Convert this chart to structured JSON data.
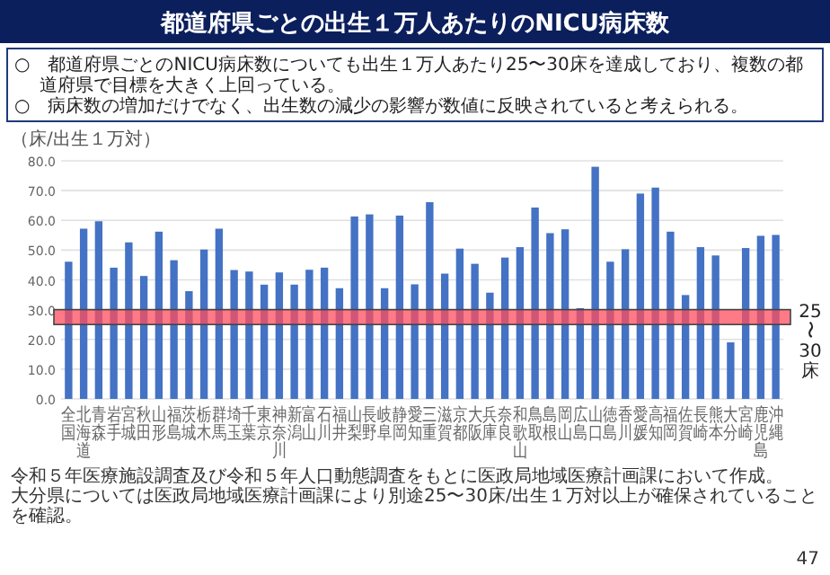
{
  "chart_data": {
    "type": "bar",
    "title": "都道府県ごとの出生１万人あたりのNICU病床数",
    "ylabel": "（床/出生１万対）",
    "annotations": [
      "○　都道府県ごとのNICU病床数についても出生１万人あたり25〜30床を達成しており、複数の都道府県で目標を大きく上回っている。",
      "○　病床数の増加だけでなく、出生数の減少の影響が数値に反映されていると考えられる。",
      "令和５年医療施設調査及び令和５年人口動態調査をもとに医政局地域医療計画課において作成。",
      "大分県については医政局地域医療計画課により別途25〜30床/出生１万対以上が確保されていることを確認。",
      "47"
    ],
    "categories": [
      "全国",
      "北海道",
      "青森",
      "岩手",
      "宮城",
      "秋田",
      "山形",
      "福島",
      "茨城",
      "栃木",
      "群馬",
      "埼玉",
      "千葉",
      "東京",
      "神奈川",
      "新潟",
      "富山",
      "石川",
      "福井",
      "山梨",
      "長野",
      "岐阜",
      "静岡",
      "愛知",
      "三重",
      "滋賀",
      "京都",
      "大阪",
      "兵庫",
      "奈良",
      "和歌山",
      "鳥取",
      "島根",
      "岡山",
      "広島",
      "山口",
      "徳島",
      "香川",
      "愛媛",
      "高知",
      "福岡",
      "佐賀",
      "長崎",
      "熊本",
      "大分",
      "宮崎",
      "鹿児島",
      "沖縄"
    ],
    "values": [
      46.1,
      57.2,
      59.7,
      44.1,
      52.6,
      41.3,
      56.2,
      46.6,
      36.2,
      50.2,
      57.2,
      43.3,
      42.8,
      38.4,
      42.5,
      38.4,
      43.4,
      44.1,
      37.2,
      61.3,
      62.0,
      37.2,
      61.6,
      38.5,
      66.1,
      42.1,
      50.5,
      45.4,
      35.7,
      47.5,
      51.0,
      64.3,
      55.7,
      57.0,
      30.5,
      78.0,
      46.1,
      50.3,
      69.0,
      71.0,
      56.2,
      34.9,
      51.0,
      48.2,
      19.0,
      50.7,
      54.8,
      55.1
    ],
    "color": "#4472c4",
    "ylim": [
      0,
      80
    ],
    "yticks": [
      {
        "value": 0,
        "label": "0.0"
      },
      {
        "value": 10,
        "label": "10.0"
      },
      {
        "value": 20,
        "label": "20.0"
      },
      {
        "value": 30,
        "label": "30.0"
      },
      {
        "value": 40,
        "label": "40.0"
      },
      {
        "value": 50,
        "label": "50.0"
      },
      {
        "value": 60,
        "label": "60.0"
      },
      {
        "value": 70,
        "label": "70.0"
      },
      {
        "value": 80,
        "label": "80.0"
      }
    ],
    "grid": "y",
    "bands": [
      {
        "axis": "y",
        "from": 25,
        "to": 30,
        "label": "25〜30床",
        "color": "#ff4d5e"
      }
    ]
  }
}
